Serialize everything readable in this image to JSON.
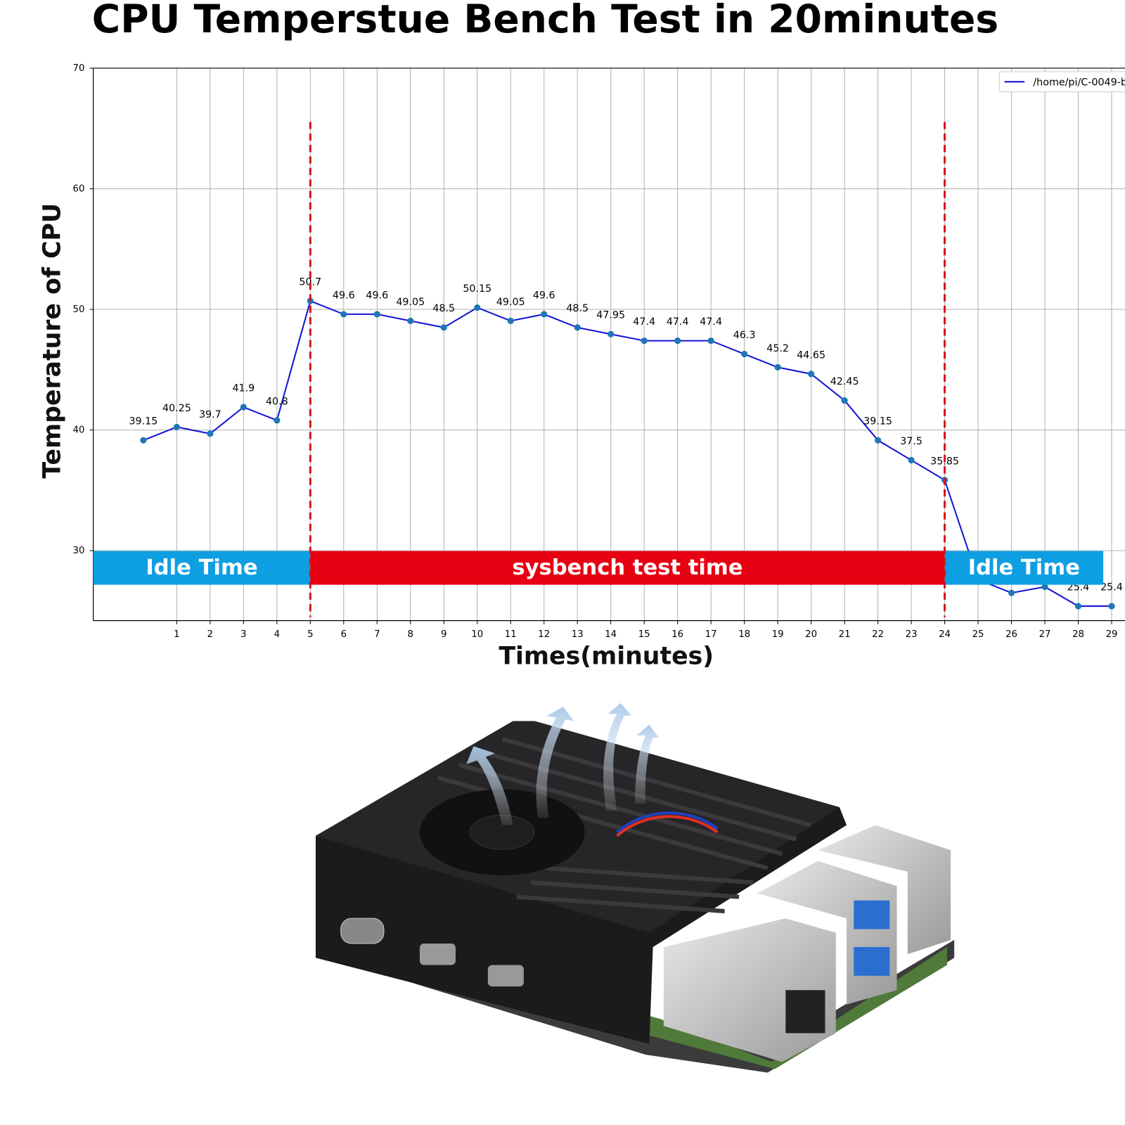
{
  "chart_data": {
    "type": "line",
    "title": "CPU Temperstue Bench Test in 20minutes",
    "x_label": "Times(minutes)",
    "y_label": "Temperature of CPU",
    "x": [
      0,
      1,
      2,
      3,
      4,
      5,
      6,
      7,
      8,
      9,
      10,
      11,
      12,
      13,
      14,
      15,
      16,
      17,
      18,
      19,
      20,
      21,
      22,
      23,
      24,
      25,
      26,
      27,
      28,
      29
    ],
    "series": [
      {
        "name": "/home/pi/C-0049-b",
        "color": "#1414d6",
        "marker_color": "#1f77b4",
        "values": [
          39.15,
          40.25,
          39.7,
          41.9,
          40.8,
          50.7,
          49.6,
          49.6,
          49.05,
          48.5,
          50.15,
          49.05,
          49.6,
          48.5,
          47.95,
          47.4,
          47.4,
          47.4,
          46.3,
          45.2,
          44.65,
          42.45,
          39.15,
          37.5,
          35.85,
          27.6,
          26.5,
          27,
          25.4,
          25.4
        ]
      }
    ],
    "xlim": [
      -1.5,
      29.4
    ],
    "ylim": [
      24.2,
      70
    ],
    "xticks": [
      1,
      2,
      3,
      4,
      5,
      6,
      7,
      8,
      9,
      10,
      11,
      12,
      13,
      14,
      15,
      16,
      17,
      18,
      19,
      20,
      21,
      22,
      23,
      24,
      25,
      26,
      27,
      28,
      29
    ],
    "yticks": [
      30,
      40,
      50,
      60,
      70
    ],
    "grid": true,
    "legend": "upper right",
    "vlines": [
      {
        "x": 5,
        "color": "#d9141e"
      },
      {
        "x": 24,
        "color": "#d9141e"
      }
    ],
    "bands": [
      {
        "label": "Idle Time",
        "from": -1.5,
        "to": 5,
        "color": "#0e9fe3"
      },
      {
        "label": "sysbench test time",
        "from": 5,
        "to": 24,
        "color": "#e60012"
      },
      {
        "label": "Idle Time",
        "from": 24,
        "to": 28.75,
        "color": "#0e9fe3"
      }
    ]
  }
}
